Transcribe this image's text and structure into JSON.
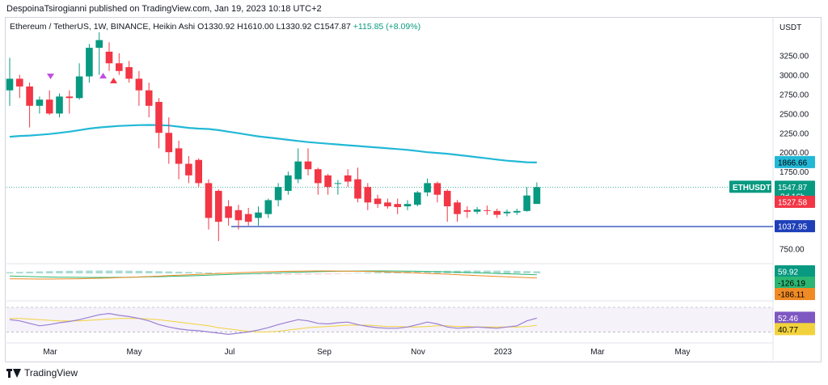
{
  "header": {
    "publisher": "DespoinaTsirogianni published on TradingView.com, Jan 19, 2023 10:18 UTC+2"
  },
  "legend": {
    "symbol": "Ethereum / TetherUS, 1W, BINANCE, Heikin Ashi",
    "open": "O1330.92",
    "high": "H1610.00",
    "low": "L1330.92",
    "close": "C1547.87",
    "change": "+115.85 (+8.09%)"
  },
  "footer": {
    "brand": "TradingView"
  },
  "colors": {
    "up": "#089981",
    "down": "#f23645",
    "ma": "#22b8d6",
    "hline": "#1e3fb8",
    "rsi": "#9a7fd1",
    "rsi_ma": "#f2d23c",
    "macd": "#f08a24",
    "signal": "#2bb673"
  },
  "chart_data": {
    "type": "candlestick",
    "axis": {
      "unit": "USDT",
      "y_ticks": [
        "3250.00",
        "3000.00",
        "2750.00",
        "2500.00",
        "2250.00",
        "2000.00",
        "1750.00",
        "750.00"
      ],
      "y_tick_values": [
        3250,
        3000,
        2750,
        2500,
        2250,
        2000,
        1750,
        750
      ],
      "ylim": [
        600,
        3550
      ],
      "x_ticks": [
        "Mar",
        "May",
        "Jul",
        "Sep",
        "Nov",
        "2023",
        "Mar",
        "May"
      ]
    },
    "price_labels": {
      "ma": "1866.66",
      "symbol": "ETHUSDT",
      "last": "1547.87",
      "countdown": "3d 16h",
      "ha_open": "1527.58",
      "level": "1037.95"
    },
    "horizontal_level": 1037.95,
    "candles": [
      {
        "o": 2800,
        "h": 3220,
        "l": 2600,
        "c": 2950
      },
      {
        "o": 2950,
        "h": 3000,
        "l": 2700,
        "c": 2850
      },
      {
        "o": 2850,
        "h": 2900,
        "l": 2320,
        "c": 2600
      },
      {
        "o": 2600,
        "h": 2720,
        "l": 2500,
        "c": 2680
      },
      {
        "o": 2680,
        "h": 2800,
        "l": 2480,
        "c": 2500
      },
      {
        "o": 2500,
        "h": 2760,
        "l": 2450,
        "c": 2720
      },
      {
        "o": 2720,
        "h": 2800,
        "l": 2500,
        "c": 2700
      },
      {
        "o": 2700,
        "h": 3150,
        "l": 2680,
        "c": 2980
      },
      {
        "o": 2980,
        "h": 3400,
        "l": 2900,
        "c": 3350
      },
      {
        "o": 3350,
        "h": 3550,
        "l": 3000,
        "c": 3450
      },
      {
        "o": 3300,
        "h": 3420,
        "l": 3050,
        "c": 3150
      },
      {
        "o": 3150,
        "h": 3280,
        "l": 3000,
        "c": 3050
      },
      {
        "o": 3100,
        "h": 3180,
        "l": 2900,
        "c": 2950
      },
      {
        "o": 2950,
        "h": 3050,
        "l": 2600,
        "c": 2800
      },
      {
        "o": 2800,
        "h": 2900,
        "l": 2450,
        "c": 2600
      },
      {
        "o": 2650,
        "h": 2700,
        "l": 2050,
        "c": 2250
      },
      {
        "o": 2250,
        "h": 2450,
        "l": 1850,
        "c": 2000
      },
      {
        "o": 2050,
        "h": 2150,
        "l": 1650,
        "c": 1850
      },
      {
        "o": 1850,
        "h": 1950,
        "l": 1600,
        "c": 1700
      },
      {
        "o": 1900,
        "h": 1920,
        "l": 1550,
        "c": 1600
      },
      {
        "o": 1600,
        "h": 1650,
        "l": 1000,
        "c": 1150
      },
      {
        "o": 1500,
        "h": 1520,
        "l": 850,
        "c": 1100
      },
      {
        "o": 1300,
        "h": 1380,
        "l": 1050,
        "c": 1150
      },
      {
        "o": 1250,
        "h": 1320,
        "l": 1000,
        "c": 1120
      },
      {
        "o": 1200,
        "h": 1280,
        "l": 1050,
        "c": 1100
      },
      {
        "o": 1150,
        "h": 1300,
        "l": 1050,
        "c": 1220
      },
      {
        "o": 1200,
        "h": 1400,
        "l": 1150,
        "c": 1380
      },
      {
        "o": 1380,
        "h": 1600,
        "l": 1300,
        "c": 1550
      },
      {
        "o": 1500,
        "h": 1750,
        "l": 1450,
        "c": 1700
      },
      {
        "o": 1650,
        "h": 2050,
        "l": 1600,
        "c": 1880
      },
      {
        "o": 1880,
        "h": 2050,
        "l": 1700,
        "c": 1780
      },
      {
        "o": 1780,
        "h": 1800,
        "l": 1450,
        "c": 1600
      },
      {
        "o": 1700,
        "h": 1720,
        "l": 1450,
        "c": 1550
      },
      {
        "o": 1600,
        "h": 1640,
        "l": 1450,
        "c": 1600
      },
      {
        "o": 1700,
        "h": 1780,
        "l": 1550,
        "c": 1620
      },
      {
        "o": 1650,
        "h": 1800,
        "l": 1350,
        "c": 1400
      },
      {
        "o": 1550,
        "h": 1600,
        "l": 1250,
        "c": 1350
      },
      {
        "o": 1400,
        "h": 1450,
        "l": 1280,
        "c": 1330
      },
      {
        "o": 1350,
        "h": 1400,
        "l": 1270,
        "c": 1300
      },
      {
        "o": 1330,
        "h": 1400,
        "l": 1200,
        "c": 1290
      },
      {
        "o": 1300,
        "h": 1380,
        "l": 1250,
        "c": 1330
      },
      {
        "o": 1320,
        "h": 1500,
        "l": 1300,
        "c": 1480
      },
      {
        "o": 1480,
        "h": 1660,
        "l": 1430,
        "c": 1600
      },
      {
        "o": 1600,
        "h": 1620,
        "l": 1350,
        "c": 1450
      },
      {
        "o": 1500,
        "h": 1520,
        "l": 1100,
        "c": 1300
      },
      {
        "o": 1350,
        "h": 1380,
        "l": 1100,
        "c": 1200
      },
      {
        "o": 1250,
        "h": 1300,
        "l": 1150,
        "c": 1230
      },
      {
        "o": 1230,
        "h": 1290,
        "l": 1200,
        "c": 1260
      },
      {
        "o": 1250,
        "h": 1310,
        "l": 1190,
        "c": 1240
      },
      {
        "o": 1240,
        "h": 1270,
        "l": 1150,
        "c": 1190
      },
      {
        "o": 1210,
        "h": 1260,
        "l": 1170,
        "c": 1230
      },
      {
        "o": 1220,
        "h": 1270,
        "l": 1190,
        "c": 1240
      },
      {
        "o": 1240,
        "h": 1550,
        "l": 1230,
        "c": 1440
      },
      {
        "o": 1330.92,
        "h": 1610,
        "l": 1330.92,
        "c": 1547.87
      }
    ],
    "moving_average": [
      2200,
      2210,
      2215,
      2225,
      2235,
      2250,
      2265,
      2285,
      2305,
      2320,
      2330,
      2340,
      2345,
      2350,
      2352,
      2350,
      2345,
      2330,
      2315,
      2305,
      2300,
      2285,
      2265,
      2245,
      2225,
      2205,
      2190,
      2175,
      2160,
      2145,
      2130,
      2120,
      2110,
      2100,
      2090,
      2080,
      2070,
      2060,
      2050,
      2040,
      2030,
      2015,
      2000,
      1990,
      1980,
      1965,
      1950,
      1935,
      1920,
      1905,
      1890,
      1880,
      1870,
      1866.66
    ],
    "macd_panel": {
      "labels": [
        "59.92",
        "-126.19",
        "-186.11"
      ]
    },
    "rsi_panel": {
      "labels": [
        "52.46",
        "40.77"
      ],
      "rsi": [
        50,
        48,
        44,
        40,
        42,
        45,
        47,
        50,
        54,
        58,
        60,
        57,
        55,
        52,
        48,
        42,
        38,
        35,
        33,
        32,
        30,
        28,
        26,
        28,
        30,
        33,
        37,
        42,
        46,
        50,
        48,
        44,
        43,
        45,
        46,
        42,
        39,
        37,
        36,
        36,
        38,
        42,
        46,
        43,
        38,
        36,
        37,
        38,
        37,
        36,
        38,
        40,
        48,
        52.46
      ],
      "rsi_ma": [
        52,
        52,
        51,
        50,
        49,
        48,
        48,
        48,
        49,
        50,
        51,
        52,
        52,
        52,
        51,
        50,
        48,
        46,
        44,
        42,
        40,
        37,
        35,
        33,
        31,
        30,
        30,
        31,
        33,
        35,
        37,
        38,
        39,
        40,
        41,
        41,
        41,
        40,
        39,
        39,
        38,
        38,
        39,
        40,
        40,
        39,
        39,
        38,
        38,
        38,
        38,
        38,
        39,
        40.77
      ]
    }
  }
}
